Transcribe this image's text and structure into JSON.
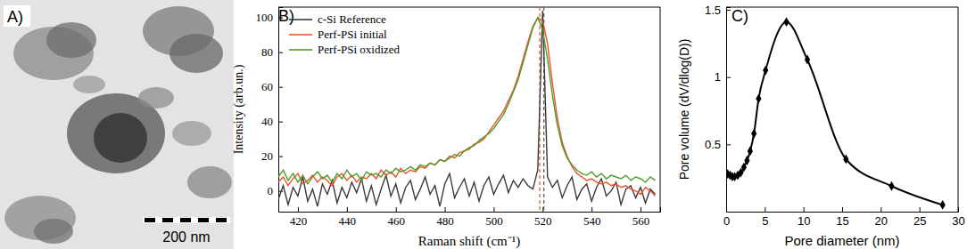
{
  "chart_data": [
    {
      "type": "image",
      "title": "A)",
      "scale_bar": "200 nm"
    },
    {
      "type": "line",
      "title": "B)",
      "x_label": "Raman shift (cm⁻¹)",
      "y_label": "Intensity (arb.un.)",
      "xlim": [
        412,
        568
      ],
      "xticks": [
        420,
        440,
        460,
        480,
        500,
        520,
        540,
        560
      ],
      "ylim": [
        -12,
        106
      ],
      "yticks": [
        0,
        20,
        40,
        60,
        80,
        100
      ],
      "legend": "top-left",
      "x": [
        412,
        414,
        416,
        418,
        420,
        422,
        424,
        426,
        428,
        430,
        432,
        434,
        436,
        438,
        440,
        442,
        444,
        446,
        448,
        450,
        452,
        454,
        456,
        458,
        460,
        462,
        464,
        466,
        468,
        470,
        472,
        474,
        476,
        478,
        480,
        482,
        484,
        486,
        488,
        490,
        492,
        494,
        496,
        498,
        500,
        502,
        504,
        506,
        508,
        510,
        512,
        514,
        516,
        518,
        520,
        522,
        524,
        526,
        528,
        530,
        532,
        534,
        536,
        538,
        540,
        542,
        544,
        546,
        548,
        550,
        552,
        554,
        556,
        558,
        560,
        562,
        564,
        566
      ],
      "series": [
        {
          "name": "c-Si Reference",
          "color": "#3a3a3a",
          "values": [
            -5,
            3,
            -8,
            2,
            -3,
            8,
            -6,
            1,
            -9,
            4,
            -2,
            6,
            -7,
            2,
            -4,
            5,
            -1,
            7,
            -6,
            3,
            -8,
            1,
            9,
            -3,
            4,
            -7,
            2,
            6,
            -5,
            1,
            8,
            -2,
            3,
            -9,
            4,
            10,
            -4,
            2,
            7,
            -3,
            5,
            -6,
            3,
            8,
            -2,
            4,
            9,
            -1,
            6,
            2,
            7,
            3,
            1,
            12,
            104,
            8,
            2,
            6,
            -4,
            3,
            8,
            -5,
            1,
            4,
            -6,
            2,
            7,
            -3,
            0,
            5,
            -8,
            1,
            3,
            -4,
            2,
            -7,
            1,
            -2
          ]
        },
        {
          "name": "Perf-PSi initial",
          "color": "#f0502a",
          "values": [
            5,
            8,
            3,
            7,
            10,
            4,
            6,
            9,
            5,
            8,
            6,
            3,
            8,
            10,
            6,
            9,
            5,
            8,
            7,
            10,
            7,
            12,
            9,
            11,
            8,
            13,
            10,
            12,
            11,
            14,
            13,
            16,
            15,
            18,
            17,
            20,
            19,
            22,
            23,
            24,
            27,
            28,
            30,
            34,
            38,
            42,
            46,
            52,
            58,
            66,
            76,
            86,
            95,
            100,
            98,
            85,
            62,
            42,
            28,
            20,
            14,
            10,
            8,
            6,
            7,
            5,
            4,
            5,
            3,
            4,
            2,
            3,
            1,
            0,
            -2,
            2,
            0,
            -3
          ]
        },
        {
          "name": "Perf-PSi oxidized",
          "color": "#4c9e2c",
          "values": [
            8,
            12,
            6,
            10,
            5,
            9,
            4,
            8,
            11,
            7,
            9,
            5,
            10,
            7,
            12,
            8,
            10,
            6,
            11,
            9,
            10,
            8,
            12,
            10,
            13,
            11,
            12,
            14,
            12,
            15,
            14,
            16,
            15,
            18,
            17,
            19,
            21,
            20,
            23,
            25,
            26,
            29,
            31,
            33,
            36,
            40,
            44,
            50,
            57,
            64,
            74,
            84,
            94,
            100,
            93,
            76,
            55,
            38,
            26,
            19,
            15,
            12,
            10,
            9,
            11,
            8,
            10,
            7,
            9,
            8,
            7,
            9,
            6,
            8,
            7,
            5,
            8,
            6
          ]
        }
      ],
      "vlines": [
        {
          "value": 520.5,
          "color": "#555555",
          "line_style": "dashed"
        },
        {
          "value": 518.8,
          "color": "#f0502a",
          "line_style": "dashed"
        }
      ]
    },
    {
      "type": "line",
      "title": "C)",
      "x_label": "Pore diameter (nm)",
      "y_label": "Pore volume (dV/dlog(D))",
      "xlim": [
        0,
        30
      ],
      "xticks": [
        0,
        5,
        10,
        15,
        20,
        25,
        30
      ],
      "ylim": [
        0,
        1.52
      ],
      "yticks": [
        0.5,
        1,
        1.5
      ],
      "x": [
        0.2,
        0.5,
        0.8,
        1.1,
        1.5,
        1.9,
        2.3,
        2.7,
        3.1,
        3.6,
        4.2,
        5.1,
        7.8,
        10.5,
        15.5,
        21.4,
        28
      ],
      "series": [
        {
          "color": "#000000",
          "marker": "diamond",
          "values": [
            0.28,
            0.27,
            0.26,
            0.26,
            0.27,
            0.29,
            0.33,
            0.38,
            0.45,
            0.58,
            0.84,
            1.05,
            1.41,
            1.13,
            0.39,
            0.19,
            0.05
          ]
        }
      ]
    }
  ]
}
